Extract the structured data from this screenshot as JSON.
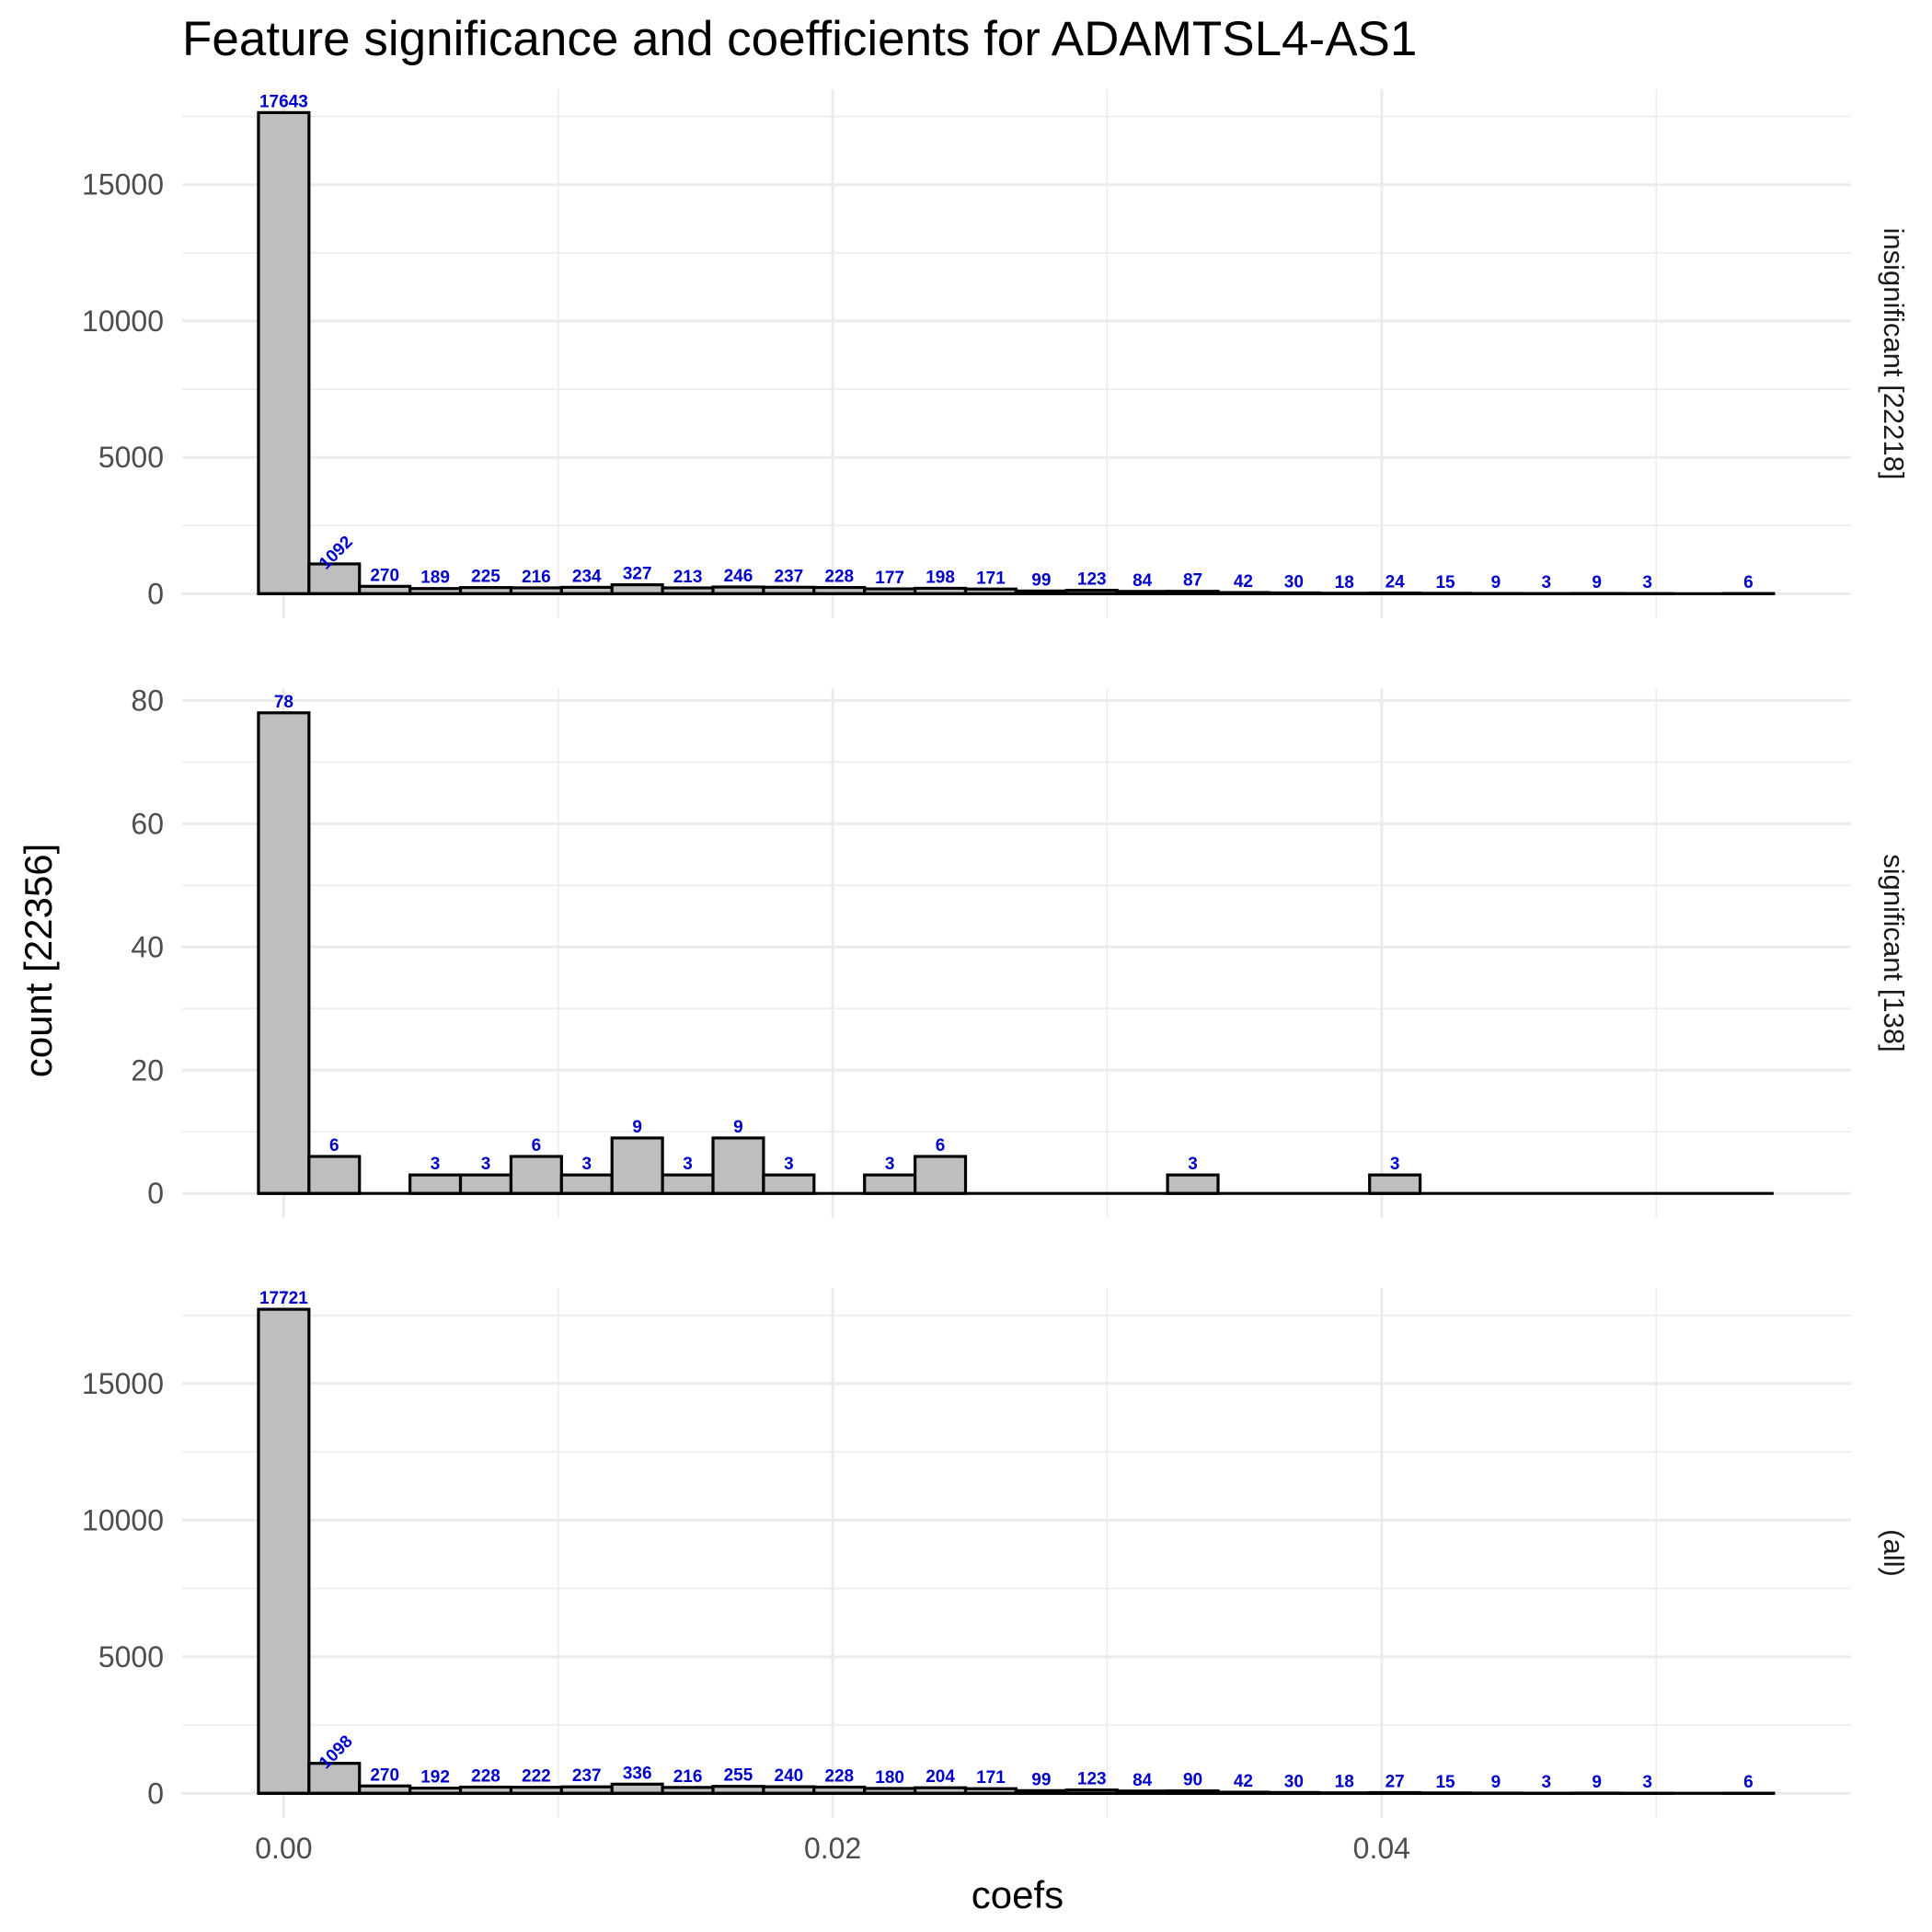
{
  "chart_data": {
    "type": "bar",
    "title": "Feature significance and coefficients for ADAMTSL4-AS1",
    "xlabel": "coefs",
    "ylabel": "count [22356]",
    "xlim": [
      -0.0037,
      0.0571
    ],
    "x_ticks": [
      "0.00",
      "0.02",
      "0.04"
    ],
    "x_tick_values": [
      0.0,
      0.02,
      0.04
    ],
    "bin_width": 0.00184,
    "bin_start": -0.00092,
    "grid": true,
    "panels": [
      {
        "label": "insignificant [22218]",
        "ylim": [
          -900,
          18500
        ],
        "y_ticks": [
          "0",
          "5000",
          "10000",
          "15000"
        ],
        "y_tick_values": [
          0,
          5000,
          10000,
          15000
        ],
        "values": [
          17643,
          1092,
          270,
          189,
          225,
          216,
          234,
          327,
          213,
          246,
          237,
          228,
          177,
          198,
          171,
          99,
          123,
          84,
          87,
          42,
          30,
          18,
          24,
          15,
          9,
          3,
          9,
          3,
          0,
          6
        ],
        "labels": [
          "17643",
          "1092",
          "270",
          "189",
          "225",
          "216",
          "234",
          "327",
          "213",
          "246",
          "237",
          "228",
          "177",
          "198",
          "171",
          "99",
          "123",
          "84",
          "87",
          "42",
          "30",
          "18",
          "24",
          "15",
          "9",
          "3",
          "9",
          "3",
          "",
          "6"
        ]
      },
      {
        "label": "significant [138]",
        "ylim": [
          -4,
          82
        ],
        "y_ticks": [
          "0",
          "20",
          "40",
          "60",
          "80"
        ],
        "y_tick_values": [
          0,
          20,
          40,
          60,
          80
        ],
        "values": [
          78,
          6,
          0,
          3,
          3,
          6,
          3,
          9,
          3,
          9,
          3,
          0,
          3,
          6,
          0,
          0,
          0,
          0,
          3,
          0,
          0,
          0,
          3,
          0,
          0,
          0,
          0,
          0,
          0,
          0
        ],
        "labels": [
          "78",
          "6",
          "",
          "3",
          "3",
          "6",
          "3",
          "9",
          "3",
          "9",
          "3",
          "",
          "3",
          "6",
          "",
          "",
          "",
          "",
          "3",
          "",
          "",
          "",
          "3",
          "",
          "",
          "",
          "",
          "",
          "",
          ""
        ]
      },
      {
        "label": "(all)",
        "ylim": [
          -900,
          18500
        ],
        "y_ticks": [
          "0",
          "5000",
          "10000",
          "15000"
        ],
        "y_tick_values": [
          0,
          5000,
          10000,
          15000
        ],
        "values": [
          17721,
          1098,
          270,
          192,
          228,
          222,
          237,
          336,
          216,
          255,
          240,
          228,
          180,
          204,
          171,
          99,
          123,
          84,
          90,
          42,
          30,
          18,
          27,
          15,
          9,
          3,
          9,
          3,
          0,
          6
        ],
        "labels": [
          "17721",
          "1098",
          "270",
          "192",
          "228",
          "222",
          "237",
          "336",
          "216",
          "255",
          "240",
          "228",
          "180",
          "204",
          "171",
          "99",
          "123",
          "84",
          "90",
          "42",
          "30",
          "18",
          "27",
          "15",
          "9",
          "3",
          "9",
          "3",
          "",
          "6"
        ]
      }
    ],
    "colors": {
      "bar_fill": "#bebebe",
      "bar_outline": "#000000",
      "label": "#0000cc",
      "grid": "#ebebeb"
    }
  }
}
